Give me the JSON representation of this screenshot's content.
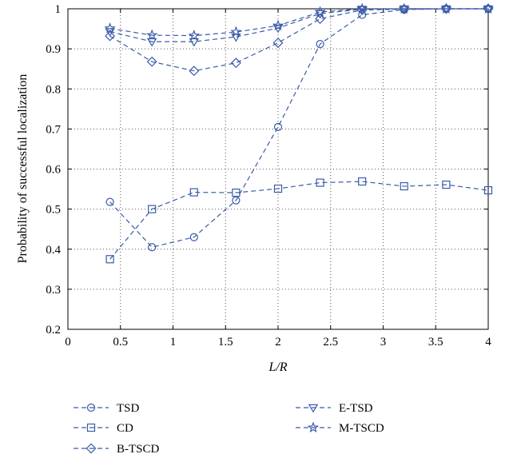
{
  "chart_data": {
    "type": "line",
    "xlabel": "L/R",
    "ylabel": "Probability of successful localization",
    "xlim": [
      0,
      4
    ],
    "ylim": [
      0.2,
      1
    ],
    "xticks": [
      "0",
      "0.5",
      "1",
      "1.5",
      "2",
      "2.5",
      "3",
      "3.5",
      "4"
    ],
    "yticks": [
      "0.2",
      "0.3",
      "0.4",
      "0.5",
      "0.6",
      "0.7",
      "0.8",
      "0.9",
      "1"
    ],
    "grid": true,
    "legend_position": "below",
    "line_color": "#3a5ba8",
    "x": [
      0.4,
      0.8,
      1.2,
      1.6,
      2.0,
      2.4,
      2.8,
      3.2,
      3.6,
      4.0
    ],
    "series": [
      {
        "name": "TSD",
        "marker": "circle",
        "values": [
          0.518,
          0.405,
          0.43,
          0.522,
          0.705,
          0.912,
          0.985,
          0.998,
          1.0,
          1.0
        ]
      },
      {
        "name": "CD",
        "marker": "square",
        "values": [
          0.375,
          0.5,
          0.542,
          0.541,
          0.551,
          0.566,
          0.569,
          0.557,
          0.561,
          0.547
        ]
      },
      {
        "name": "B-TSCD",
        "marker": "diamond",
        "values": [
          0.932,
          0.868,
          0.845,
          0.865,
          0.915,
          0.975,
          0.997,
          0.999,
          1.0,
          1.0
        ]
      },
      {
        "name": "E-TSD",
        "marker": "triangle-down",
        "values": [
          0.943,
          0.918,
          0.918,
          0.93,
          0.952,
          0.988,
          0.999,
          1.0,
          1.0,
          1.0
        ]
      },
      {
        "name": "M-TSCD",
        "marker": "star",
        "values": [
          0.951,
          0.934,
          0.933,
          0.942,
          0.958,
          0.992,
          1.0,
          1.0,
          1.0,
          1.0
        ]
      }
    ]
  }
}
